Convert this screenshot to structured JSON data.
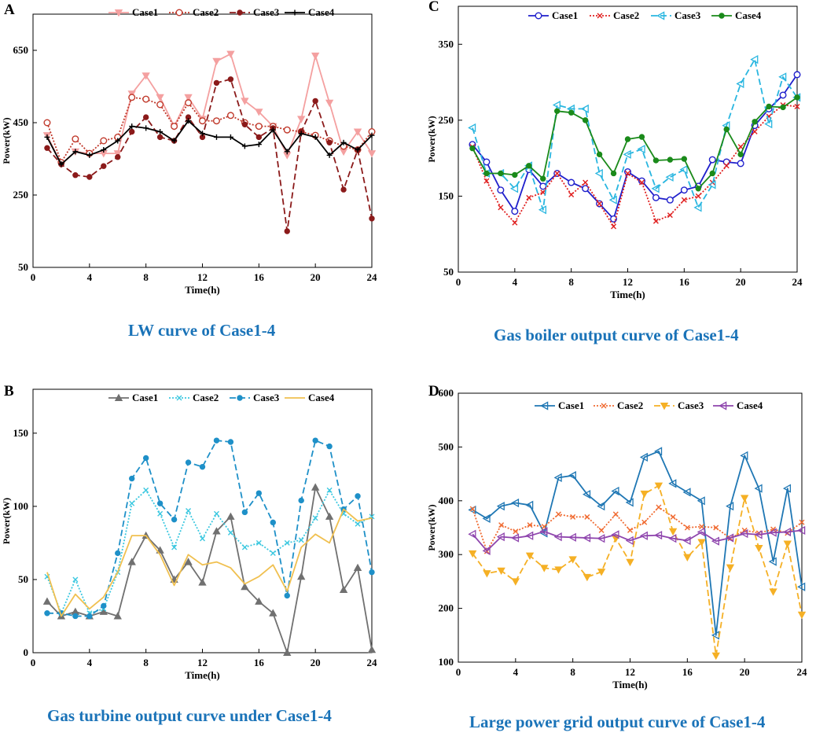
{
  "chart_data": [
    {
      "id": "A",
      "panel_label": "A",
      "type": "line",
      "caption": "LW curve of Case1-4",
      "xlabel": "Time(h)",
      "ylabel": "Power(kW)",
      "xlim": [
        0,
        24
      ],
      "ylim": [
        50,
        750
      ],
      "xticks": [
        0,
        4,
        8,
        12,
        16,
        20,
        24
      ],
      "yticks": [
        50,
        250,
        450,
        650
      ],
      "x": [
        1,
        2,
        3,
        4,
        5,
        6,
        7,
        8,
        9,
        10,
        11,
        12,
        13,
        14,
        15,
        16,
        17,
        18,
        19,
        20,
        21,
        22,
        23,
        24
      ],
      "series": [
        {
          "name": "Case1",
          "color": "#f4a0a0",
          "dash": "",
          "marker": "tri-down",
          "values": [
            415,
            335,
            370,
            365,
            365,
            365,
            530,
            580,
            520,
            440,
            520,
            460,
            620,
            640,
            510,
            480,
            440,
            360,
            460,
            635,
            505,
            370,
            425,
            365
          ]
        },
        {
          "name": "Case2",
          "color": "#c0392b",
          "dash": "2,2",
          "marker": "circle-open",
          "values": [
            450,
            340,
            405,
            365,
            400,
            410,
            520,
            515,
            500,
            440,
            505,
            455,
            455,
            470,
            450,
            440,
            440,
            430,
            425,
            415,
            400,
            385,
            375,
            425
          ]
        },
        {
          "name": "Case3",
          "color": "#8b1a1a",
          "dash": "8,4",
          "marker": "dot",
          "values": [
            380,
            335,
            305,
            300,
            330,
            355,
            425,
            465,
            410,
            400,
            465,
            410,
            560,
            570,
            445,
            410,
            435,
            150,
            425,
            510,
            395,
            265,
            375,
            185
          ]
        },
        {
          "name": "Case4",
          "color": "#000000",
          "dash": "",
          "marker": "plus",
          "values": [
            410,
            335,
            370,
            360,
            375,
            400,
            440,
            435,
            425,
            400,
            455,
            420,
            410,
            410,
            385,
            390,
            430,
            370,
            420,
            410,
            360,
            395,
            375,
            415
          ]
        }
      ]
    },
    {
      "id": "C",
      "panel_label": "C",
      "type": "line",
      "caption": "Gas boiler output curve of Case1-4",
      "xlabel": "Time(h)",
      "ylabel": "Power(kW)",
      "xlim": [
        0,
        24
      ],
      "ylim": [
        50,
        400
      ],
      "xticks": [
        0,
        4,
        8,
        12,
        16,
        20,
        24
      ],
      "yticks": [
        50,
        150,
        250,
        350
      ],
      "x": [
        1,
        2,
        3,
        4,
        5,
        6,
        7,
        8,
        9,
        10,
        11,
        12,
        13,
        14,
        15,
        16,
        17,
        18,
        19,
        20,
        21,
        22,
        23,
        24
      ],
      "series": [
        {
          "name": "Case1",
          "color": "#1f1fcc",
          "dash": "",
          "marker": "circle-open",
          "values": [
            218,
            195,
            158,
            130,
            185,
            163,
            180,
            168,
            160,
            140,
            120,
            182,
            170,
            148,
            145,
            158,
            163,
            198,
            195,
            193,
            243,
            265,
            283,
            310
          ]
        },
        {
          "name": "Case2",
          "color": "#e02020",
          "dash": "2,2",
          "marker": "x",
          "values": [
            215,
            170,
            135,
            115,
            148,
            155,
            180,
            152,
            168,
            140,
            110,
            180,
            168,
            117,
            125,
            145,
            150,
            168,
            190,
            215,
            235,
            255,
            270,
            268
          ]
        },
        {
          "name": "Case3",
          "color": "#29b6e0",
          "dash": "8,4",
          "marker": "tri-left",
          "values": [
            240,
            180,
            180,
            160,
            190,
            132,
            270,
            265,
            265,
            180,
            145,
            205,
            212,
            160,
            175,
            185,
            135,
            165,
            243,
            298,
            330,
            245,
            307,
            280
          ]
        },
        {
          "name": "Case4",
          "color": "#1a8a1a",
          "dash": "",
          "marker": "dot",
          "values": [
            213,
            180,
            180,
            178,
            190,
            173,
            262,
            260,
            250,
            205,
            180,
            225,
            228,
            197,
            198,
            199,
            160,
            180,
            238,
            205,
            248,
            268,
            267,
            280
          ]
        }
      ]
    },
    {
      "id": "B",
      "panel_label": "B",
      "type": "line",
      "caption": "Gas turbine output curve under Case1-4",
      "xlabel": "Time(h)",
      "ylabel": "Power(kW)",
      "xlim": [
        0,
        24
      ],
      "ylim": [
        0,
        180
      ],
      "xticks": [
        0,
        4,
        8,
        12,
        16,
        20,
        24
      ],
      "yticks": [
        0,
        50,
        100,
        150
      ],
      "x": [
        1,
        2,
        3,
        4,
        5,
        6,
        7,
        8,
        9,
        10,
        11,
        12,
        13,
        14,
        15,
        16,
        17,
        18,
        19,
        20,
        21,
        22,
        23,
        24
      ],
      "series": [
        {
          "name": "Case1",
          "color": "#707070",
          "dash": "",
          "marker": "tri-up",
          "values": [
            35,
            25,
            28,
            25,
            28,
            25,
            62,
            80,
            70,
            50,
            62,
            48,
            83,
            93,
            45,
            35,
            27,
            0,
            52,
            113,
            93,
            43,
            58,
            2
          ]
        },
        {
          "name": "Case2",
          "color": "#3cc8e0",
          "dash": "2,2",
          "marker": "x",
          "values": [
            52,
            27,
            50,
            27,
            30,
            55,
            102,
            111,
            95,
            72,
            97,
            78,
            95,
            82,
            72,
            75,
            68,
            75,
            77,
            92,
            111,
            95,
            88,
            93
          ]
        },
        {
          "name": "Case3",
          "color": "#1e90c8",
          "dash": "8,4",
          "marker": "dot",
          "values": [
            27,
            27,
            25,
            25,
            32,
            68,
            119,
            133,
            102,
            91,
            130,
            127,
            145,
            144,
            96,
            109,
            89,
            39,
            104,
            145,
            141,
            98,
            107,
            55
          ]
        },
        {
          "name": "Case4",
          "color": "#f0c050",
          "dash": "",
          "marker": "none",
          "values": [
            55,
            25,
            40,
            30,
            38,
            55,
            80,
            80,
            67,
            46,
            67,
            60,
            62,
            58,
            47,
            52,
            60,
            42,
            72,
            81,
            75,
            98,
            90,
            92
          ]
        }
      ]
    },
    {
      "id": "D",
      "panel_label": "D",
      "type": "line",
      "caption": "Large power grid output curve of Case1-4",
      "xlabel": "Time(h)",
      "ylabel": "Power(kW)",
      "xlim": [
        0,
        24
      ],
      "ylim": [
        100,
        600
      ],
      "xticks": [
        0,
        4,
        8,
        12,
        16,
        20,
        24
      ],
      "yticks": [
        100,
        200,
        300,
        400,
        500,
        600
      ],
      "x": [
        1,
        2,
        3,
        4,
        5,
        6,
        7,
        8,
        9,
        10,
        11,
        12,
        13,
        14,
        15,
        16,
        17,
        18,
        19,
        20,
        21,
        22,
        23,
        24
      ],
      "series": [
        {
          "name": "Case1",
          "color": "#1f77b4",
          "dash": "",
          "marker": "tri-left",
          "values": [
            383,
            367,
            390,
            396,
            392,
            340,
            443,
            447,
            412,
            390,
            418,
            397,
            481,
            492,
            432,
            416,
            400,
            150,
            390,
            484,
            423,
            287,
            423,
            240
          ]
        },
        {
          "name": "Case2",
          "color": "#f06a30",
          "dash": "2,2",
          "marker": "x",
          "values": [
            385,
            306,
            355,
            343,
            355,
            352,
            375,
            370,
            370,
            345,
            375,
            345,
            360,
            388,
            370,
            350,
            352,
            350,
            330,
            345,
            340,
            347,
            340,
            360
          ]
        },
        {
          "name": "Case3",
          "color": "#f5b025",
          "dash": "8,4",
          "marker": "tri-down",
          "values": [
            302,
            265,
            270,
            250,
            298,
            275,
            272,
            291,
            258,
            268,
            330,
            286,
            413,
            428,
            343,
            295,
            323,
            112,
            276,
            405,
            312,
            231,
            320,
            188
          ]
        },
        {
          "name": "Case4",
          "color": "#8e44ad",
          "dash": "",
          "marker": "tri-left",
          "values": [
            338,
            307,
            333,
            331,
            335,
            343,
            333,
            332,
            331,
            330,
            337,
            326,
            335,
            336,
            330,
            326,
            342,
            325,
            331,
            339,
            337,
            341,
            342,
            345
          ]
        }
      ]
    }
  ]
}
